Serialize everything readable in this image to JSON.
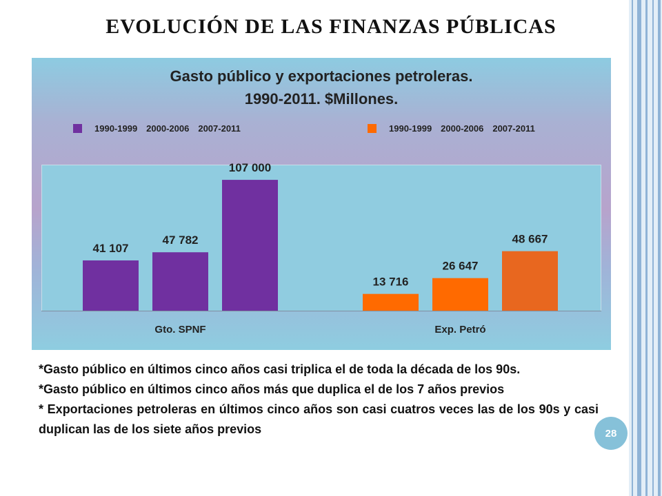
{
  "slide": {
    "title": "EVOLUCIÓN DE LAS FINANZAS PÚBLICAS",
    "page_number": "28"
  },
  "chart_data": {
    "type": "bar",
    "title_lines": [
      "Gasto público y exportaciones petroleras.",
      "1990-2011. $Millones."
    ],
    "groups": [
      "Gto. SPNF",
      "Exp. Petró"
    ],
    "categories": [
      "1990-1999",
      "2000-2006",
      "2007-2011"
    ],
    "series": [
      {
        "group": "Gto. SPNF",
        "values": [
          41107,
          47782,
          107000
        ],
        "labels": [
          "41 107",
          "47 782",
          "107 000"
        ],
        "colors": [
          "#7030a0",
          "#7030a0",
          "#7030a0"
        ]
      },
      {
        "group": "Exp. Petró",
        "values": [
          13716,
          26647,
          48667
        ],
        "labels": [
          "13 716",
          "26 647",
          "48 667"
        ],
        "colors": [
          "#ff6a00",
          "#ff6a00",
          "#e8671f"
        ]
      }
    ],
    "legend": {
      "placement": "top",
      "entries": [
        {
          "color": "#7030a0",
          "labels": [
            "1990-1999",
            "2000-2006",
            "2007-2011"
          ]
        },
        {
          "color": "#ff6a00",
          "labels": [
            "1990-1999",
            "2000-2006",
            "2007-2011"
          ]
        }
      ]
    },
    "ylim": [
      0,
      120000
    ],
    "grid": false
  },
  "notes": [
    "*Gasto público en últimos cinco años casi triplica el de toda la década de los 90s.",
    "*Gasto público en últimos cinco años más que duplica el de los 7 años previos",
    "* Exportaciones petroleras en últimos cinco años son casi cuatros veces las de los 90s y casi duplican las de los siete años previos"
  ]
}
